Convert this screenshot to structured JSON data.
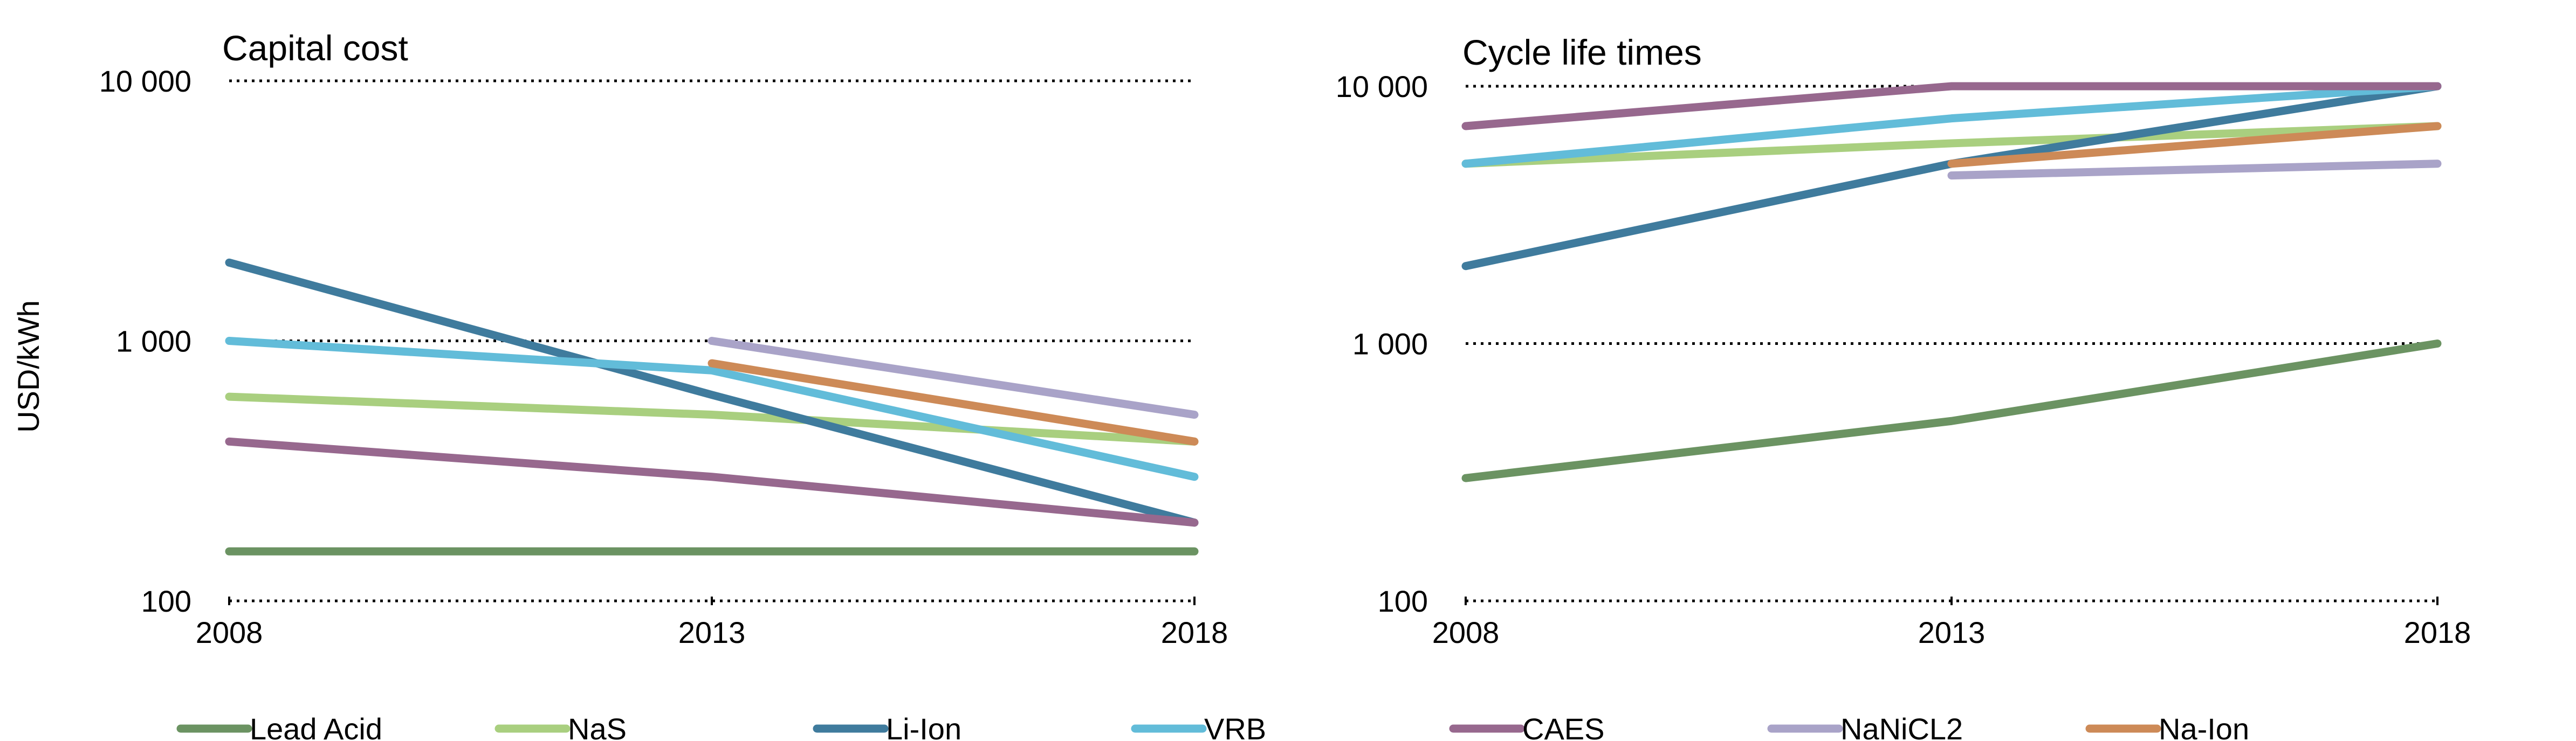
{
  "y_axis_label": "USD/kWh",
  "colors": {
    "Lead Acid": "#6b9362",
    "NaS": "#a9cf7f",
    "Li-Ion": "#3f7b9d",
    "VRB": "#62bcd9",
    "CAES": "#97688e",
    "NaNiCL2": "#a9a3c8",
    "Na-Ion": "#cd8a57"
  },
  "legend": [
    "Lead Acid",
    "NaS",
    "Li-Ion",
    "VRB",
    "CAES",
    "NaNiCL2",
    "Na-Ion"
  ],
  "chart_data": [
    {
      "type": "line",
      "title": "Capital cost",
      "ylabel": "USD/kWh",
      "yscale": "log",
      "ylim": [
        100,
        10000
      ],
      "yticks": [
        100,
        1000,
        10000
      ],
      "ytick_labels": [
        "100",
        "1 000",
        "10 000"
      ],
      "x": [
        2008,
        2013,
        2018
      ],
      "xtick_labels": [
        "2008",
        "2013",
        "2018"
      ],
      "grid": "horizontal-dotted",
      "series": [
        {
          "name": "Lead Acid",
          "values": [
            155,
            155,
            155
          ]
        },
        {
          "name": "NaS",
          "values": [
            610,
            520,
            410
          ]
        },
        {
          "name": "Li-Ion",
          "values": [
            2000,
            620,
            200
          ]
        },
        {
          "name": "VRB",
          "values": [
            1000,
            770,
            300
          ]
        },
        {
          "name": "CAES",
          "values": [
            410,
            300,
            200
          ]
        },
        {
          "name": "NaNiCL2",
          "values": [
            null,
            1000,
            520
          ]
        },
        {
          "name": "Na-Ion",
          "values": [
            null,
            820,
            410
          ]
        }
      ]
    },
    {
      "type": "line",
      "title": "Cycle life times",
      "yscale": "log",
      "ylim": [
        100,
        10000
      ],
      "yticks": [
        100,
        1000,
        10000
      ],
      "ytick_labels": [
        "100",
        "1 000",
        "10 000"
      ],
      "x": [
        2008,
        2013,
        2018
      ],
      "xtick_labels": [
        "2008",
        "2013",
        "2018"
      ],
      "grid": "horizontal-dotted",
      "series": [
        {
          "name": "Lead Acid",
          "values": [
            300,
            500,
            1000
          ]
        },
        {
          "name": "NaS",
          "values": [
            5000,
            6000,
            7000
          ]
        },
        {
          "name": "Li-Ion",
          "values": [
            2000,
            5000,
            10000
          ]
        },
        {
          "name": "VRB",
          "values": [
            5000,
            7500,
            10000
          ]
        },
        {
          "name": "CAES",
          "values": [
            7000,
            10000,
            10000
          ]
        },
        {
          "name": "NaNiCL2",
          "values": [
            null,
            4500,
            5000
          ]
        },
        {
          "name": "Na-Ion",
          "values": [
            null,
            5000,
            7000
          ]
        }
      ]
    }
  ]
}
